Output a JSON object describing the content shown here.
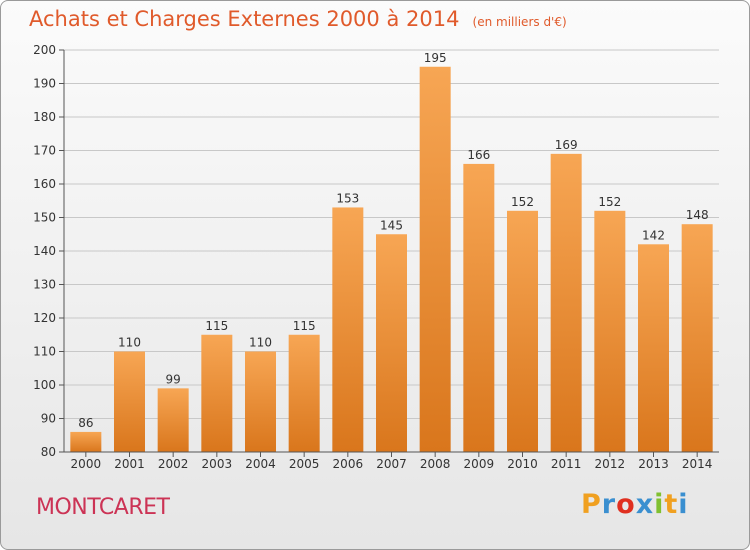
{
  "header": {
    "title": "Achats et Charges Externes 2000 à 2014",
    "subtitle": "(en milliers d'€)"
  },
  "footer": {
    "commune": "MONTCARET",
    "logo_letters": [
      "P",
      "r",
      "o",
      "x",
      "i",
      "t",
      "i"
    ],
    "logo_colors": [
      "#f0a020",
      "#3a8fd0",
      "#e03020",
      "#3a8fd0",
      "#80c030",
      "#f0a020",
      "#3a8fd0"
    ]
  },
  "colors": {
    "bar_top": "#f7a654",
    "bar_bottom": "#d9761c",
    "axis": "#555555",
    "grid": "#c8c8c8",
    "label": "#333333"
  },
  "chart_data": {
    "type": "bar",
    "categories": [
      "2000",
      "2001",
      "2002",
      "2003",
      "2004",
      "2005",
      "2006",
      "2007",
      "2008",
      "2009",
      "2010",
      "2011",
      "2012",
      "2013",
      "2014"
    ],
    "values": [
      86,
      110,
      99,
      115,
      110,
      115,
      153,
      145,
      195,
      166,
      152,
      169,
      152,
      142,
      148
    ],
    "data_labels": [
      "86",
      "110",
      "99",
      "115",
      "110",
      "115",
      "153",
      "145",
      "195",
      "166",
      "152",
      "169",
      "152",
      "142",
      "148"
    ],
    "yticks": [
      "80",
      "90",
      "100",
      "110",
      "120",
      "130",
      "140",
      "150",
      "160",
      "170",
      "180",
      "190",
      "200"
    ],
    "ylim": [
      80,
      200
    ],
    "grid": true,
    "legend": "none"
  }
}
